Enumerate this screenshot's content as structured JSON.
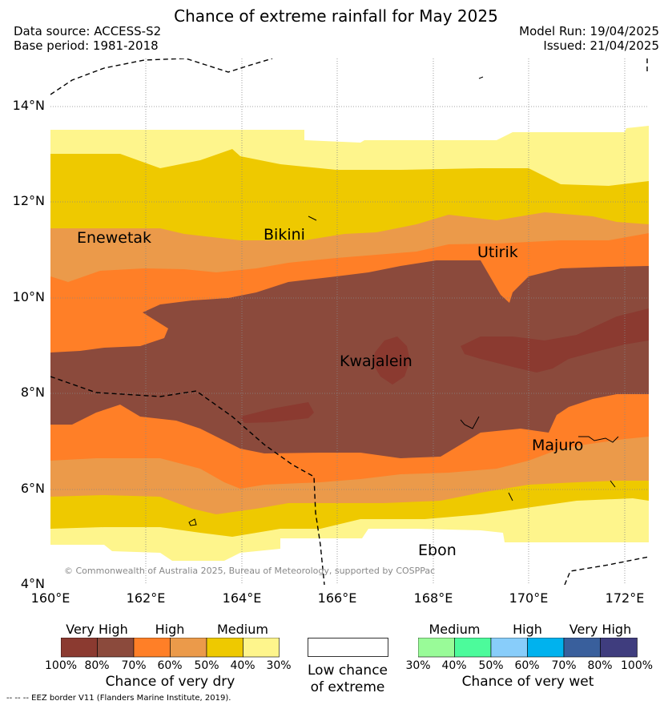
{
  "header": {
    "title": "Chance of extreme rainfall for May 2025",
    "data_source": "Data source: ACCESS-S2",
    "base_period": "Base period: 1981-2018",
    "model_run": "Model Run: 19/04/2025",
    "issued": "Issued: 21/04/2025"
  },
  "map": {
    "y_ticks": [
      "14°N",
      "12°N",
      "10°N",
      "8°N",
      "6°N",
      "4°N"
    ],
    "x_ticks": [
      "160°E",
      "162°E",
      "164°E",
      "166°E",
      "168°E",
      "170°E",
      "172°E"
    ],
    "places": {
      "enewetak": "Enewetak",
      "bikini": "Bikini",
      "utirik": "Utirik",
      "kwajalein": "Kwajalein",
      "majuro": "Majuro",
      "ebon": "Ebon"
    },
    "copyright": "© Commonwealth of Australia 2025, Bureau of Meteorology, supported by COSPPac"
  },
  "colors": {
    "dry_100_80": "#8b3a30",
    "dry_80_70": "#8b4a3c",
    "dry_70_60": "#ff7f27",
    "dry_60_50": "#eb9a4a",
    "dry_50_40": "#eec900",
    "dry_40_30": "#fef58c",
    "wet_30_40": "#99fb98",
    "wet_40_50": "#4cfb9b",
    "wet_50_60": "#88cdfa",
    "wet_60_70": "#00b2ee",
    "wet_70_80": "#395f9c",
    "wet_80_100": "#3f3d7e"
  },
  "legend": {
    "dry": {
      "levels": [
        "Very High",
        "High",
        "Medium"
      ],
      "ticks": [
        "100%",
        "80%",
        "70%",
        "60%",
        "50%",
        "40%",
        "30%"
      ],
      "label": "Chance of very dry"
    },
    "low": {
      "label_line1": "Low chance",
      "label_line2": "of extreme"
    },
    "wet": {
      "levels": [
        "Medium",
        "High",
        "Very High"
      ],
      "ticks": [
        "30%",
        "40%",
        "50%",
        "60%",
        "70%",
        "80%",
        "100%"
      ],
      "label": "Chance of very wet"
    }
  },
  "footnote": "--  --  -- EEZ border V11 (Flanders Marine Institute, 2019)."
}
